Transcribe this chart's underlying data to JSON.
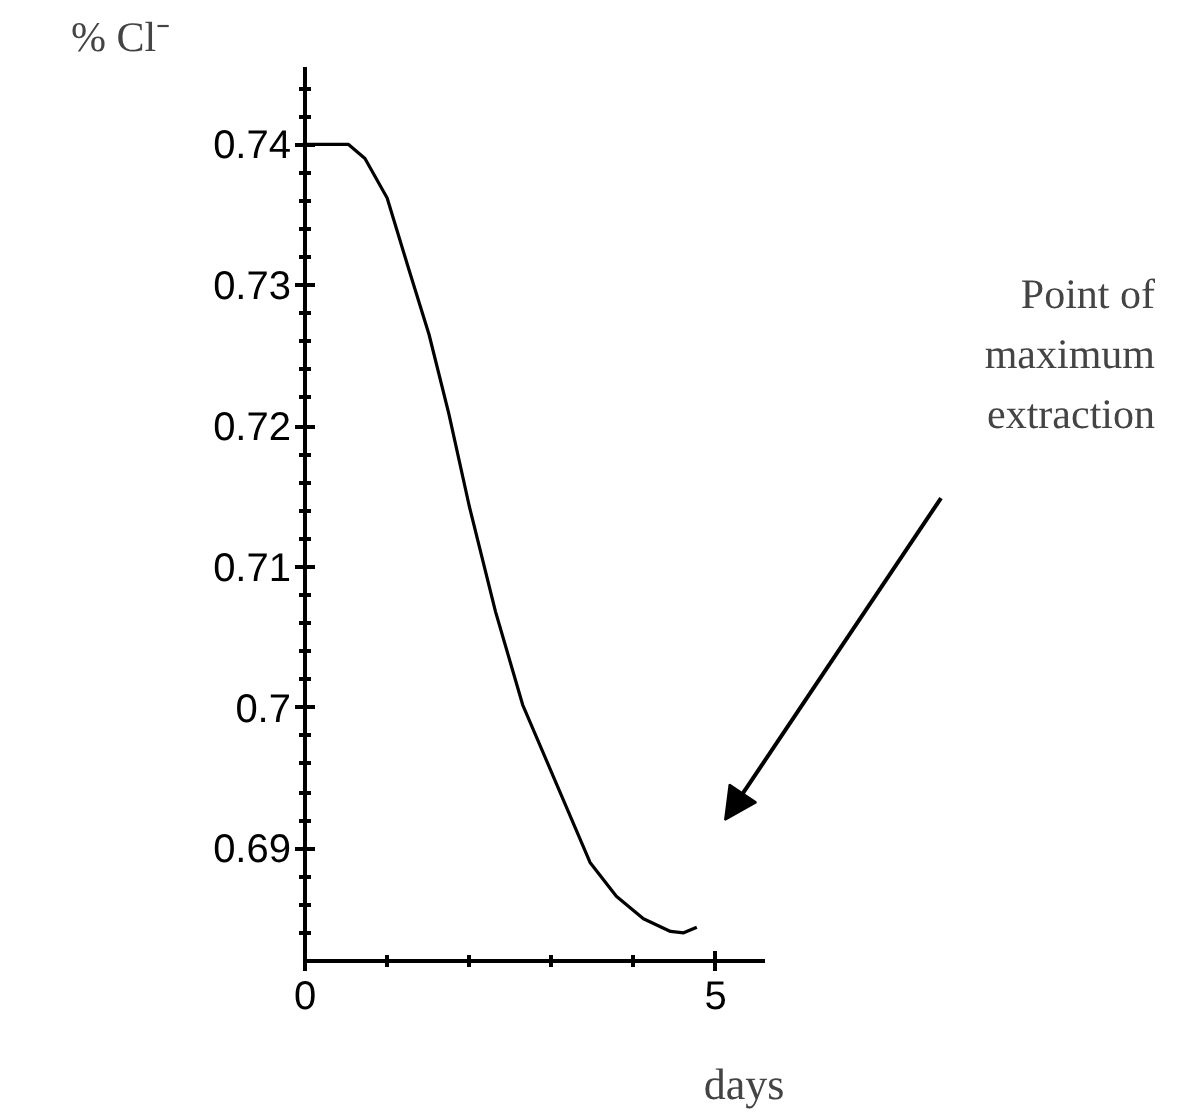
{
  "chart_data": {
    "type": "line",
    "xlabel": "days",
    "ylabel": "% Cl⁻",
    "x": [
      0,
      0.53,
      0.73,
      1.0,
      1.26,
      1.51,
      1.75,
      2.0,
      2.32,
      2.65,
      3.06,
      3.47,
      3.79,
      4.12,
      4.45,
      4.61,
      4.77
    ],
    "series": [
      {
        "color": "#000000",
        "values": [
          0.74,
          0.74,
          0.739,
          0.7362,
          0.7312,
          0.7265,
          0.7209,
          0.7143,
          0.7068,
          0.7002,
          0.6946,
          0.689,
          0.6866,
          0.685,
          0.6841,
          0.684,
          0.6844
        ]
      }
    ],
    "xlim": [
      0,
      5.6
    ],
    "ylim": [
      0.682,
      0.7455
    ],
    "xticks": [
      0,
      5
    ],
    "yticks": [
      0.69,
      0.7,
      0.71,
      0.72,
      0.73,
      0.74
    ],
    "grid": false,
    "marker": "none",
    "line_style": "solid",
    "annotations": [
      "Point of\nmaximum\nextraction"
    ]
  }
}
